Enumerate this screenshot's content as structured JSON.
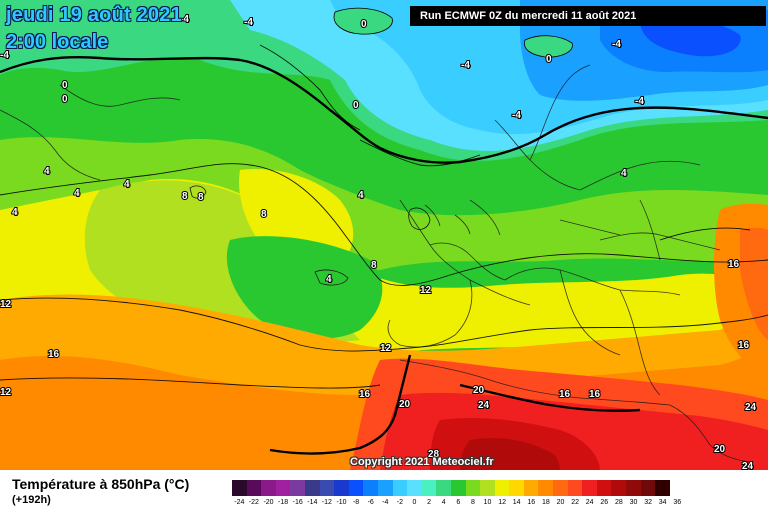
{
  "header": {
    "date": "jeudi 19 août 2021",
    "time": "2:00 locale",
    "run": "Run ECMWF 0Z du mercredi 11 août 2021"
  },
  "copyright": "Copyright 2021 Meteociel.fr",
  "legend": {
    "title": "Température à 850hPa (°C)",
    "subtitle": "(+192h)",
    "scale": [
      {
        "label": "-24",
        "color": "#2a0a2a"
      },
      {
        "label": "-22",
        "color": "#5a0a5a"
      },
      {
        "label": "-20",
        "color": "#8a1a8a"
      },
      {
        "label": "-18",
        "color": "#a020a0"
      },
      {
        "label": "-16",
        "color": "#7a3aa0"
      },
      {
        "label": "-14",
        "color": "#3a3a8a"
      },
      {
        "label": "-12",
        "color": "#3a4ab0"
      },
      {
        "label": "-10",
        "color": "#1a3acd"
      },
      {
        "label": "-8",
        "color": "#0a50ff"
      },
      {
        "label": "-6",
        "color": "#0a80ff"
      },
      {
        "label": "-4",
        "color": "#1aa0ff"
      },
      {
        "label": "-2",
        "color": "#3acdff"
      },
      {
        "label": "0",
        "color": "#5ae0ff"
      },
      {
        "label": "2",
        "color": "#4af0c0"
      },
      {
        "label": "4",
        "color": "#3ad880"
      },
      {
        "label": "6",
        "color": "#2ac830"
      },
      {
        "label": "8",
        "color": "#7ada20"
      },
      {
        "label": "10",
        "color": "#b0e020"
      },
      {
        "label": "12",
        "color": "#eef000"
      },
      {
        "label": "14",
        "color": "#ffd800"
      },
      {
        "label": "16",
        "color": "#ffaa00"
      },
      {
        "label": "18",
        "color": "#ff8a00"
      },
      {
        "label": "20",
        "color": "#ff6a10"
      },
      {
        "label": "22",
        "color": "#ff4a20"
      },
      {
        "label": "24",
        "color": "#f02020"
      },
      {
        "label": "26",
        "color": "#d01010"
      },
      {
        "label": "28",
        "color": "#b00a0a"
      },
      {
        "label": "30",
        "color": "#900a0a"
      },
      {
        "label": "32",
        "color": "#700a0a"
      },
      {
        "label": "34",
        "color": "#300000"
      },
      {
        "label": "36",
        "color": "#ffffff"
      }
    ]
  },
  "isotherm_labels": [
    "-4",
    "-4",
    "0",
    "0",
    "-4",
    "-4",
    "-4",
    "0",
    "-4",
    "0",
    "0",
    "4",
    "4",
    "4",
    "4",
    "4",
    "8",
    "8",
    "8",
    "8",
    "4",
    "4",
    "12",
    "12",
    "16",
    "16",
    "16",
    "16",
    "16",
    "20",
    "20",
    "24",
    "24",
    "28",
    "20",
    "24",
    "12",
    "16",
    "-4",
    "12"
  ]
}
